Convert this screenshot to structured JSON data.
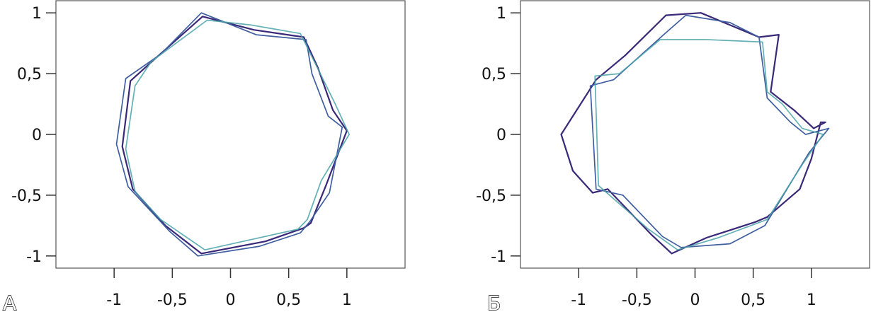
{
  "chart_data": [
    {
      "type": "line",
      "panel_label": "А",
      "xlim": [
        -1.5,
        1.5
      ],
      "ylim": [
        -1.1,
        1.1
      ],
      "x_ticks": [
        -1,
        -0.5,
        0,
        0.5,
        1
      ],
      "x_tick_labels": [
        "-1",
        "-0,5",
        "0",
        "0,5",
        "1"
      ],
      "y_ticks": [
        1,
        0.5,
        0,
        -0.5,
        -1
      ],
      "y_tick_labels": [
        "1",
        "0,5",
        "0",
        "-0,5",
        "-1"
      ],
      "grid": false,
      "colors": [
        "#3a2878",
        "#3f5ea0",
        "#49a2a8"
      ],
      "series": [
        {
          "color": "#3a2878",
          "x": [
            1.0,
            0.82,
            0.69,
            0.63,
            0.3,
            -0.25,
            -0.56,
            -0.84,
            -0.93,
            -0.86,
            -0.64,
            -0.24,
            0.2,
            0.63,
            0.75,
            0.88,
            1.0
          ],
          "y": [
            0.03,
            -0.42,
            -0.73,
            -0.77,
            -0.88,
            -0.98,
            -0.75,
            -0.45,
            -0.1,
            0.44,
            0.63,
            0.97,
            0.86,
            0.8,
            0.55,
            0.2,
            0.03
          ]
        },
        {
          "color": "#3f5ea0",
          "x": [
            0.96,
            0.85,
            0.68,
            0.6,
            0.25,
            -0.28,
            -0.52,
            -0.88,
            -0.98,
            -0.9,
            -0.6,
            -0.25,
            0.22,
            0.65,
            0.7,
            0.84,
            0.96
          ],
          "y": [
            0.06,
            -0.48,
            -0.72,
            -0.81,
            -0.92,
            -1.0,
            -0.8,
            -0.43,
            -0.08,
            0.46,
            0.66,
            1.0,
            0.82,
            0.78,
            0.5,
            0.15,
            0.06
          ]
        },
        {
          "color": "#49a2a8",
          "x": [
            1.02,
            0.78,
            0.66,
            0.58,
            0.2,
            -0.22,
            -0.6,
            -0.82,
            -0.9,
            -0.82,
            -0.68,
            -0.2,
            0.18,
            0.6,
            0.72,
            0.9,
            1.02
          ],
          "y": [
            0.0,
            -0.38,
            -0.7,
            -0.78,
            -0.86,
            -0.95,
            -0.7,
            -0.47,
            -0.12,
            0.4,
            0.6,
            0.94,
            0.9,
            0.83,
            0.6,
            0.25,
            0.0
          ]
        }
      ]
    },
    {
      "type": "line",
      "panel_label": "Б",
      "xlim": [
        -1.5,
        1.5
      ],
      "ylim": [
        -1.1,
        1.1
      ],
      "x_ticks": [
        -1,
        -0.5,
        0,
        0.5,
        1
      ],
      "x_tick_labels": [
        "-1",
        "-0,5",
        "0",
        "0,5",
        "1"
      ],
      "y_ticks": [
        1,
        0.5,
        0,
        -0.5,
        -1
      ],
      "y_tick_labels": [
        "1",
        "0,5",
        "0",
        "-0,5",
        "-1"
      ],
      "grid": false,
      "colors": [
        "#3a2878",
        "#3f5ea0",
        "#49a2a8"
      ],
      "series": [
        {
          "color": "#3a2878",
          "x": [
            1.08,
            1.0,
            0.9,
            0.62,
            0.52,
            0.1,
            -0.2,
            -0.38,
            -0.75,
            -0.88,
            -1.05,
            -1.15,
            -0.85,
            -0.6,
            -0.25,
            0.05,
            0.55,
            0.72,
            0.65,
            0.85,
            1.02,
            1.12,
            1.08
          ],
          "y": [
            0.1,
            -0.2,
            -0.45,
            -0.68,
            -0.72,
            -0.85,
            -0.98,
            -0.82,
            -0.45,
            -0.48,
            -0.3,
            0.0,
            0.45,
            0.65,
            0.98,
            1.0,
            0.8,
            0.82,
            0.35,
            0.2,
            0.05,
            0.1,
            0.1
          ]
        },
        {
          "color": "#3f5ea0",
          "x": [
            1.15,
            0.98,
            0.6,
            0.3,
            -0.12,
            -0.28,
            -0.62,
            -0.85,
            -0.9,
            -0.7,
            -0.27,
            -0.08,
            0.3,
            0.55,
            0.62,
            0.82,
            0.95,
            1.15
          ],
          "y": [
            0.05,
            -0.15,
            -0.75,
            -0.9,
            -0.93,
            -0.84,
            -0.5,
            -0.45,
            0.4,
            0.45,
            0.82,
            0.98,
            0.92,
            0.8,
            0.3,
            0.1,
            0.0,
            0.05
          ]
        },
        {
          "color": "#49a2a8",
          "x": [
            1.1,
            0.92,
            0.62,
            0.2,
            -0.15,
            -0.4,
            -0.83,
            -0.86,
            -0.65,
            -0.3,
            0.1,
            0.58,
            0.62,
            0.75,
            0.92,
            1.1
          ],
          "y": [
            0.0,
            -0.25,
            -0.7,
            -0.85,
            -0.95,
            -0.78,
            -0.42,
            0.48,
            0.5,
            0.78,
            0.78,
            0.76,
            0.35,
            0.25,
            0.05,
            0.0
          ]
        }
      ]
    }
  ]
}
